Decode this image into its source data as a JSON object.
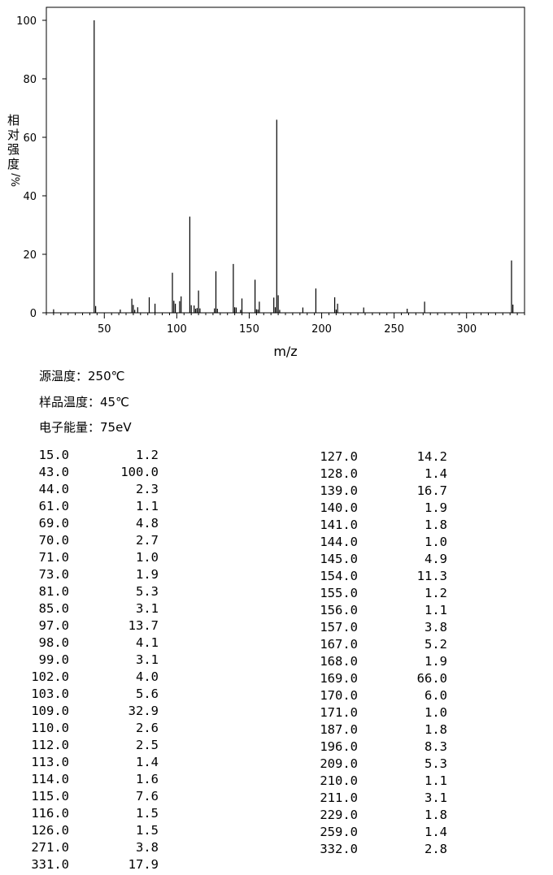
{
  "chart_data": {
    "type": "bar",
    "xlabel": "m/z",
    "ylabel": "相对强度%/",
    "ylabel_chars": [
      "相",
      "对",
      "强",
      "度",
      "%/"
    ],
    "xlim": [
      10,
      340
    ],
    "ylim": [
      0,
      100
    ],
    "x_ticks": [
      50,
      100,
      150,
      200,
      250,
      300
    ],
    "y_ticks": [
      0,
      20,
      40,
      60,
      80,
      100
    ],
    "grid": false,
    "peaks": [
      [
        15.0,
        1.2
      ],
      [
        43.0,
        100.0
      ],
      [
        44.0,
        2.3
      ],
      [
        61.0,
        1.1
      ],
      [
        69.0,
        4.8
      ],
      [
        70.0,
        2.7
      ],
      [
        71.0,
        1.0
      ],
      [
        73.0,
        1.9
      ],
      [
        81.0,
        5.3
      ],
      [
        85.0,
        3.1
      ],
      [
        97.0,
        13.7
      ],
      [
        98.0,
        4.1
      ],
      [
        99.0,
        3.1
      ],
      [
        102.0,
        4.0
      ],
      [
        103.0,
        5.6
      ],
      [
        109.0,
        32.9
      ],
      [
        110.0,
        2.6
      ],
      [
        112.0,
        2.5
      ],
      [
        113.0,
        1.4
      ],
      [
        114.0,
        1.6
      ],
      [
        115.0,
        7.6
      ],
      [
        116.0,
        1.5
      ],
      [
        126.0,
        1.5
      ],
      [
        127.0,
        14.2
      ],
      [
        128.0,
        1.4
      ],
      [
        139.0,
        16.7
      ],
      [
        140.0,
        1.9
      ],
      [
        141.0,
        1.8
      ],
      [
        144.0,
        1.0
      ],
      [
        145.0,
        4.9
      ],
      [
        154.0,
        11.3
      ],
      [
        155.0,
        1.2
      ],
      [
        156.0,
        1.1
      ],
      [
        157.0,
        3.8
      ],
      [
        167.0,
        5.2
      ],
      [
        168.0,
        1.9
      ],
      [
        169.0,
        66.0
      ],
      [
        170.0,
        6.0
      ],
      [
        171.0,
        1.0
      ],
      [
        187.0,
        1.8
      ],
      [
        196.0,
        8.3
      ],
      [
        209.0,
        5.3
      ],
      [
        210.0,
        1.1
      ],
      [
        211.0,
        3.1
      ],
      [
        229.0,
        1.8
      ],
      [
        259.0,
        1.4
      ],
      [
        271.0,
        3.8
      ],
      [
        331.0,
        17.9
      ],
      [
        332.0,
        2.8
      ]
    ]
  },
  "conditions": {
    "source_temp": "源温度：250℃",
    "sample_temp": "样品温度：45℃",
    "electron_energy": "电子能量：75eV"
  },
  "peak_table": {
    "left_column": [
      [
        "15.0",
        "1.2"
      ],
      [
        "43.0",
        "100.0"
      ],
      [
        "44.0",
        "2.3"
      ],
      [
        "61.0",
        "1.1"
      ],
      [
        "69.0",
        "4.8"
      ],
      [
        "70.0",
        "2.7"
      ],
      [
        "71.0",
        "1.0"
      ],
      [
        "73.0",
        "1.9"
      ],
      [
        "81.0",
        "5.3"
      ],
      [
        "85.0",
        "3.1"
      ],
      [
        "97.0",
        "13.7"
      ],
      [
        "98.0",
        "4.1"
      ],
      [
        "99.0",
        "3.1"
      ],
      [
        "102.0",
        "4.0"
      ],
      [
        "103.0",
        "5.6"
      ],
      [
        "109.0",
        "32.9"
      ],
      [
        "110.0",
        "2.6"
      ],
      [
        "112.0",
        "2.5"
      ],
      [
        "113.0",
        "1.4"
      ],
      [
        "114.0",
        "1.6"
      ],
      [
        "115.0",
        "7.6"
      ],
      [
        "116.0",
        "1.5"
      ],
      [
        "126.0",
        "1.5"
      ],
      [
        "271.0",
        "3.8"
      ],
      [
        "331.0",
        "17.9"
      ]
    ],
    "right_column": [
      [
        "127.0",
        "14.2"
      ],
      [
        "128.0",
        "1.4"
      ],
      [
        "139.0",
        "16.7"
      ],
      [
        "140.0",
        "1.9"
      ],
      [
        "141.0",
        "1.8"
      ],
      [
        "144.0",
        "1.0"
      ],
      [
        "145.0",
        "4.9"
      ],
      [
        "154.0",
        "11.3"
      ],
      [
        "155.0",
        "1.2"
      ],
      [
        "156.0",
        "1.1"
      ],
      [
        "157.0",
        "3.8"
      ],
      [
        "167.0",
        "5.2"
      ],
      [
        "168.0",
        "1.9"
      ],
      [
        "169.0",
        "66.0"
      ],
      [
        "170.0",
        "6.0"
      ],
      [
        "171.0",
        "1.0"
      ],
      [
        "187.0",
        "1.8"
      ],
      [
        "196.0",
        "8.3"
      ],
      [
        "209.0",
        "5.3"
      ],
      [
        "210.0",
        "1.1"
      ],
      [
        "211.0",
        "3.1"
      ],
      [
        "229.0",
        "1.8"
      ],
      [
        "259.0",
        "1.4"
      ],
      [
        "332.0",
        "2.8"
      ]
    ]
  }
}
